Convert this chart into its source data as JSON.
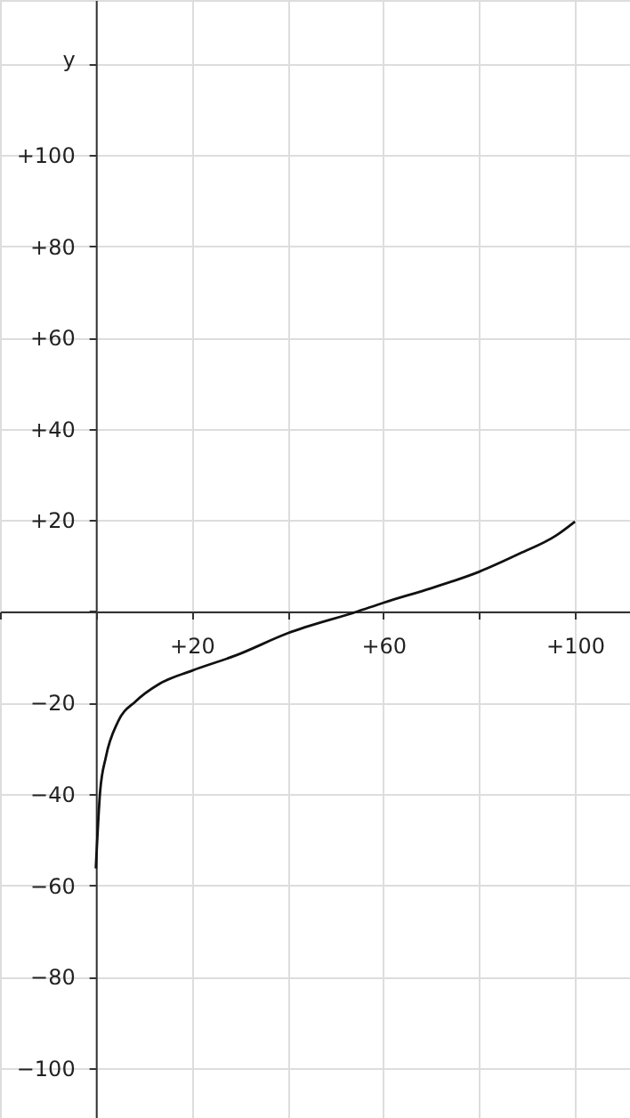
{
  "chart_data": {
    "type": "line",
    "ylabel": "y",
    "x": [
      0,
      0.9,
      2.1,
      4.6,
      8.3,
      13.2,
      20,
      29.3,
      40,
      54.6,
      60,
      70,
      80,
      88.5,
      96,
      100
    ],
    "series": [
      {
        "color": "#111111",
        "values": [
          -56.3,
          -39.5,
          -31.9,
          -24.2,
          -19.7,
          -15.9,
          -13,
          -9.6,
          -4.8,
          0,
          1.9,
          5.1,
          8.7,
          12.7,
          16.6,
          19.7
        ]
      }
    ],
    "xlim": [
      -20,
      111.5
    ],
    "ylim": [
      -111,
      134
    ],
    "xticks": [
      {
        "value": -20,
        "label": null
      },
      {
        "value": 0,
        "label": null
      },
      {
        "value": 20,
        "label": "+20"
      },
      {
        "value": 40,
        "label": null
      },
      {
        "value": 60,
        "label": "+60"
      },
      {
        "value": 80,
        "label": null
      },
      {
        "value": 100,
        "label": "+100"
      }
    ],
    "yticks": [
      -100,
      -80,
      -60,
      -40,
      -20,
      {
        "value": 0,
        "label": null
      },
      {
        "value": 20,
        "label": "+20"
      },
      {
        "value": 40,
        "label": "+40"
      },
      {
        "value": 60,
        "label": "+60"
      },
      {
        "value": 80,
        "label": "+80"
      },
      {
        "value": 100,
        "label": "+100"
      },
      {
        "value": 120,
        "label": null
      }
    ],
    "grid": true,
    "marker": "none",
    "line_style": "solid"
  }
}
